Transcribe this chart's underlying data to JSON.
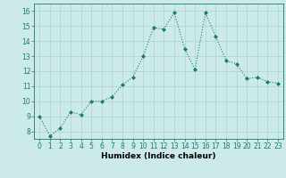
{
  "x": [
    0,
    1,
    2,
    3,
    4,
    5,
    6,
    7,
    8,
    9,
    10,
    11,
    12,
    13,
    14,
    15,
    16,
    17,
    18,
    19,
    20,
    21,
    22,
    23
  ],
  "y": [
    9.0,
    7.7,
    8.2,
    9.3,
    9.1,
    10.0,
    10.0,
    10.3,
    11.1,
    11.6,
    13.0,
    14.9,
    14.8,
    15.9,
    13.5,
    12.1,
    15.9,
    14.3,
    12.7,
    12.5,
    11.5,
    11.6,
    11.3,
    11.2
  ],
  "line_color": "#1a7a6e",
  "marker": "D",
  "marker_size": 2.0,
  "bg_color": "#cceae7",
  "grid_color": "#aad4d0",
  "xlabel": "Humidex (Indice chaleur)",
  "ylabel_ticks": [
    8,
    9,
    10,
    11,
    12,
    13,
    14,
    15,
    16
  ],
  "ylim": [
    7.5,
    16.5
  ],
  "xlim": [
    -0.5,
    23.5
  ],
  "xtick_labels": [
    "0",
    "1",
    "2",
    "3",
    "4",
    "5",
    "6",
    "7",
    "8",
    "9",
    "10",
    "11",
    "12",
    "13",
    "14",
    "15",
    "16",
    "17",
    "18",
    "19",
    "20",
    "21",
    "22",
    "23"
  ],
  "label_fontsize": 6.5,
  "tick_fontsize": 5.5,
  "linewidth": 0.8
}
